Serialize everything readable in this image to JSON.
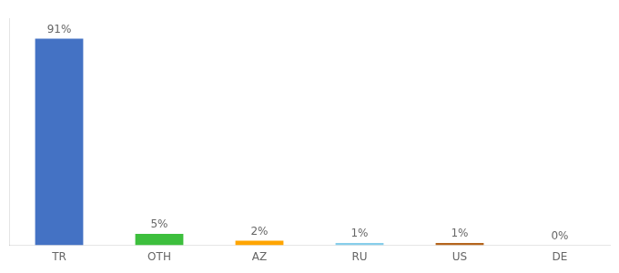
{
  "chart_data": {
    "type": "bar",
    "categories": [
      "TR",
      "OTH",
      "AZ",
      "RU",
      "US",
      "DE"
    ],
    "values": [
      91,
      5,
      2,
      1,
      1,
      0
    ],
    "value_labels": [
      "91%",
      "5%",
      "2%",
      "1%",
      "1%",
      "0%"
    ],
    "colors": [
      "#4472C4",
      "#3DBF3D",
      "#FFA500",
      "#87CEEB",
      "#B5651D",
      "#4472C4"
    ],
    "ylim": [
      0,
      100
    ],
    "grid": false,
    "data_labels": true,
    "tick_labels": "x"
  }
}
